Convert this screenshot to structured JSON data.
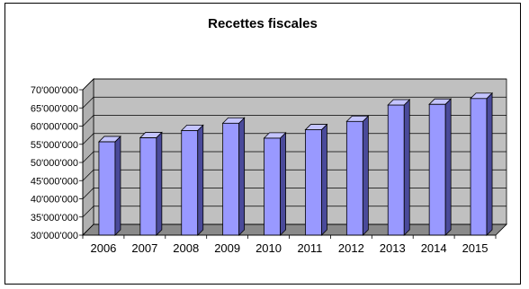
{
  "chart_data": {
    "type": "bar",
    "title": "Recettes fiscales",
    "xlabel": "",
    "ylabel": "",
    "categories": [
      "2006",
      "2007",
      "2008",
      "2009",
      "2010",
      "2011",
      "2012",
      "2013",
      "2014",
      "2015"
    ],
    "values": [
      55700000,
      56800000,
      58800000,
      60800000,
      56700000,
      59000000,
      61300000,
      65800000,
      66000000,
      67600000
    ],
    "ylim": [
      30000000,
      70000000
    ],
    "yticks": [
      "30'000'000",
      "35'000'000",
      "40'000'000",
      "45'000'000",
      "50'000'000",
      "55'000'000",
      "60'000'000",
      "65'000'000",
      "70'000'000"
    ],
    "grid": true,
    "legend": "none",
    "colors": {
      "bar_front": "#9999ff",
      "bar_side": "#4a4a9a",
      "bar_top": "#c4c4ff",
      "wall": "#c0c0c0",
      "floor": "#8a8a8a"
    }
  }
}
